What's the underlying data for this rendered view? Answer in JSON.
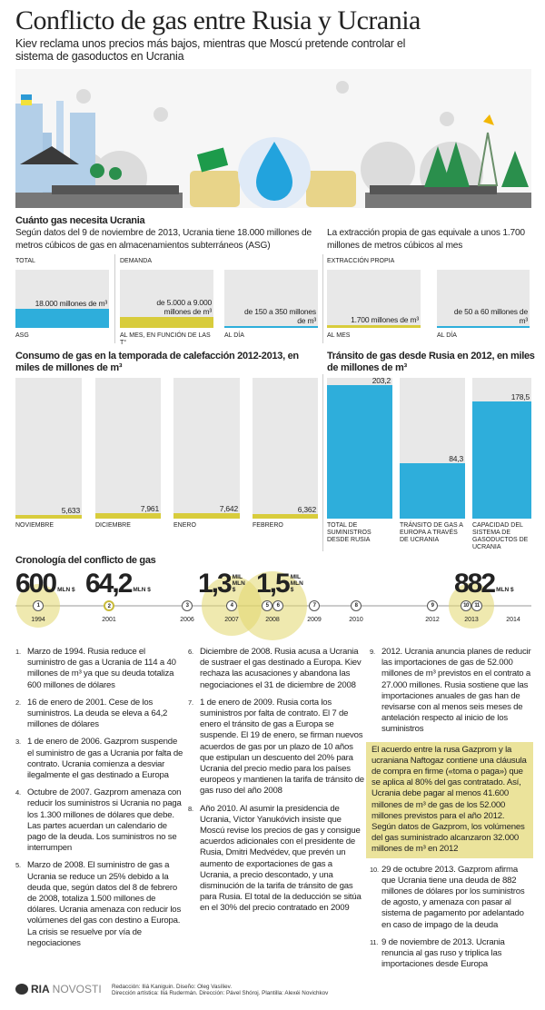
{
  "header": {
    "title": "Conflicto de gas entre Rusia y Ucrania",
    "subtitle": "Kiev reclama unos precios más bajos, mientras que Moscú pretende controlar el sistema de gasoductos en Ucrania"
  },
  "needs": {
    "heading": "Cuánto gas necesita Ucrania",
    "left_text": "Según datos del 9 de noviembre de 2013, Ucrania tiene 18.000 millones de metros cúbicos de gas en almacenamientos subterráneos (ASG)",
    "right_text": "La extracción propia de gas equivale a unos 1.700 millones de metros cúbicos al mes",
    "groups": {
      "total": "TOTAL",
      "demand": "DEMANDA",
      "extraction": "EXTRACCIÓN PROPIA"
    },
    "boxes": [
      {
        "value": "18.000 millones de m³",
        "label": "ASG",
        "color": "#2eaedb",
        "fill_pct": 33
      },
      {
        "value": "de 5.000 a 9.000 millones de m³",
        "label": "AL MES, EN FUNCIÓN DE LAS T°",
        "color": "#d8cc3c",
        "fill_pct": 19
      },
      {
        "value": "de 150 a 350 millones de m³",
        "label": "AL DÍA",
        "color": "#2eaedb",
        "fill_pct": 3
      },
      {
        "value": "1.700 millones de m³",
        "label": "AL MES",
        "color": "#d8cc3c",
        "fill_pct": 5
      },
      {
        "value": "de 50 a 60 millones de m³",
        "label": "AL DÍA",
        "color": "#2eaedb",
        "fill_pct": 2
      }
    ]
  },
  "chart_data": [
    {
      "type": "bar",
      "title": "Consumo de gas en la temporada de calefacción 2012-2013, en miles de millones de m³",
      "categories": [
        "NOVIEMBRE",
        "DICIEMBRE",
        "ENERO",
        "FEBRERO"
      ],
      "values": [
        5.633,
        7.961,
        7.642,
        6.362
      ],
      "value_labels": [
        "5,633",
        "7,961",
        "7,642",
        "6,362"
      ],
      "ylim": [
        0,
        214
      ],
      "color": "#d8cc3c"
    },
    {
      "type": "bar",
      "title": "Tránsito de gas desde Rusia en 2012, en miles de millones de m³",
      "categories": [
        "TOTAL DE SUMINISTROS DESDE RUSIA",
        "TRÁNSITO DE GAS A EUROPA A TRAVÉS DE UCRANIA",
        "CAPACIDAD DEL SISTEMA DE GASODUCTOS DE UCRANIA"
      ],
      "values": [
        203.2,
        84.3,
        178.5
      ],
      "value_labels": [
        "203,2",
        "84,3",
        "178,5"
      ],
      "ylim": [
        0,
        214
      ],
      "color": "#2eaedb"
    }
  ],
  "timeline": {
    "heading": "Cronología del conflicto de gas",
    "years": [
      "1994",
      "2001",
      "2006",
      "2007",
      "2008",
      "2009",
      "2010",
      "2012",
      "2013",
      "2014"
    ],
    "markers": [
      "1",
      "2",
      "3",
      "4",
      "5",
      "6",
      "7",
      "8",
      "9",
      "10",
      "11"
    ],
    "amounts": [
      {
        "num": "600",
        "unit": "MLN $"
      },
      {
        "num": "64,2",
        "unit": "MLN $"
      },
      {
        "num": "1,3",
        "unit": "MIL MLN $"
      },
      {
        "num": "1,5",
        "unit": "MIL MLN $"
      },
      {
        "num": "882",
        "unit": "MLN $"
      }
    ],
    "events": [
      "Marzo de 1994. Rusia reduce el suministro de gas a Ucrania de 114 a 40 millones de m³ ya que su deuda totaliza 600 millones de dólares",
      "16 de enero de 2001. Cese de los suministros. La deuda se eleva a 64,2 millones de dólares",
      "1 de enero de 2006. Gazprom suspende el suministro de gas a Ucrania por falta de contrato. Ucrania comienza a desviar ilegalmente el gas destinado a Europa",
      "Octubre de 2007. Gazprom amenaza con reducir los suministros si Ucrania no paga los 1.300 millones de dólares que debe. Las partes acuerdan un calendario de pago de la deuda. Los suministros no se interrumpen",
      "Marzo de 2008. El suministro de gas a Ucrania se reduce un 25% debido a la deuda que, según datos del 8 de febrero de 2008, totaliza 1.500 millones de dólares. Ucrania amenaza con reducir los volúmenes del gas con destino a Europa. La crisis se resuelve por vía de negociaciones",
      "Diciembre de 2008. Rusia acusa a Ucrania de sustraer el gas destinado a Europa. Kiev rechaza las acusaciones y abandona las negociaciones el 31 de diciembre de 2008",
      "1 de enero de 2009. Rusia corta los suministros por falta de contrato. El 7 de enero el tránsito de gas a Europa se suspende. El 19 de enero, se firman nuevos acuerdos de gas por un plazo de 10 años que estipulan un descuento del 20% para Ucrania del precio medio para los países europeos y mantienen la tarifa de tránsito de gas ruso del año 2008",
      "Año 2010. Al asumir la presidencia de Ucrania, Víctor Yanukóvich insiste que Moscú revise los precios de gas y consigue acuerdos adicionales con el presidente de Rusia, Dmitri Medvédev, que prevén un aumento de exportaciones de gas a Ucrania, a precio descontado, y una disminución de la tarifa de tránsito de gas para Rusia. El total de la deducción se sitúa en el 30% del precio contratado en 2009",
      "2012. Ucrania anuncia planes de reducir las importaciones de gas de 52.000 millones de m³ previstos en el contrato a 27.000 millones. Rusia sostiene que las importaciones anuales de gas han de revisarse con al menos seis meses de antelación respecto al inicio de los suministros",
      "29 de octubre 2013. Gazprom afirma que Ucrania tiene una deuda de 882 millones de dólares por los suministros de agosto, y amenaza con pasar al sistema de pagamento por adelantado en caso de impago de la deuda",
      "9 de noviembre de 2013. Ucrania renuncia al gas ruso y triplica las importaciones desde Europa"
    ],
    "note": "El acuerdo entre la rusa Gazprom y la ucraniana Naftogaz contiene una cláusula de compra en firme («toma o paga») que se aplica al 80% del gas contratado. Así, Ucrania debe pagar al menos 41.600 millones de m³ de gas de los 52.000 millones previstos para el año 2012. Según datos de Gazprom, los volúmenes del gas suministrado alcanzaron 32.000 millones de m³ en 2012"
  },
  "footer": {
    "logo": "RIANOVOSTI",
    "credits_1": "Redacción: Iliá Kaniguin. Diseño: Oleg Vasíliev.",
    "credits_2": "Dirección artística: Iliá Rudermán. Dirección: Pável Shóroj. Plantilla: Alexéi Novichkov"
  }
}
